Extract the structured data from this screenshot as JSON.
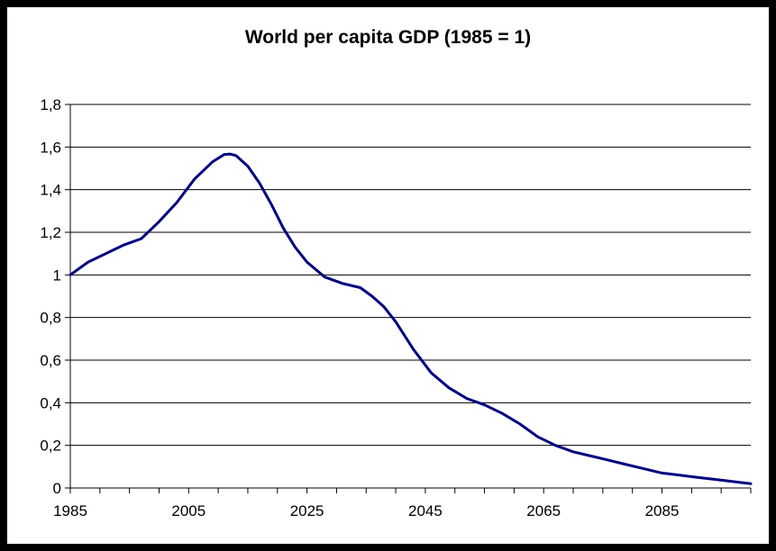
{
  "chart_data": {
    "type": "line",
    "title": "World per capita GDP (1985 = 1)",
    "xlabel": "",
    "ylabel": "",
    "xlim": [
      1985,
      2100
    ],
    "ylim": [
      0,
      1.8
    ],
    "x_ticks": [
      1985,
      2005,
      2025,
      2045,
      2065,
      2085
    ],
    "x_tick_labels": [
      "1985",
      "2005",
      "2025",
      "2045",
      "2065",
      "2085"
    ],
    "y_ticks": [
      0,
      0.2,
      0.4,
      0.6,
      0.8,
      1,
      1.2,
      1.4,
      1.6,
      1.8
    ],
    "y_tick_labels": [
      "0",
      "0,2",
      "0,4",
      "0,6",
      "0,8",
      "1",
      "1,2",
      "1,4",
      "1,6",
      "1,8"
    ],
    "grid": "horizontal",
    "legend": "none",
    "series": [
      {
        "color": "#000080",
        "x": [
          1985,
          1988,
          1991,
          1994,
          1997,
          2000,
          2003,
          2006,
          2009,
          2011,
          2012,
          2013,
          2015,
          2017,
          2019,
          2021,
          2023,
          2025,
          2028,
          2031,
          2034,
          2036,
          2038,
          2040,
          2043,
          2046,
          2049,
          2052,
          2055,
          2058,
          2061,
          2064,
          2067,
          2070,
          2073,
          2076,
          2079,
          2082,
          2085,
          2088,
          2091,
          2094,
          2097,
          2100
        ],
        "values": [
          1.0,
          1.06,
          1.1,
          1.14,
          1.17,
          1.25,
          1.34,
          1.45,
          1.53,
          1.565,
          1.567,
          1.56,
          1.51,
          1.43,
          1.33,
          1.22,
          1.13,
          1.06,
          0.99,
          0.96,
          0.94,
          0.9,
          0.85,
          0.78,
          0.65,
          0.54,
          0.47,
          0.42,
          0.39,
          0.35,
          0.3,
          0.24,
          0.2,
          0.17,
          0.15,
          0.13,
          0.11,
          0.09,
          0.07,
          0.06,
          0.05,
          0.04,
          0.03,
          0.02
        ]
      }
    ]
  }
}
